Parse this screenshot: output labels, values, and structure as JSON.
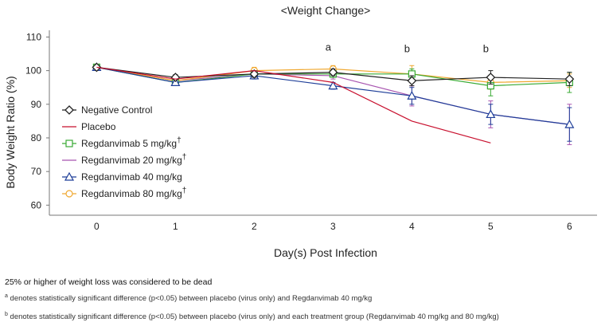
{
  "chart_data": {
    "type": "line",
    "title": "<Weight Change>",
    "xlabel": "Day(s) Post Infection",
    "ylabel": "Body Weight Ratio (%)",
    "x": [
      0,
      1,
      2,
      3,
      4,
      5,
      6
    ],
    "xlim": [
      -0.6,
      6.35
    ],
    "ylim": [
      57,
      112
    ],
    "yticks": [
      60,
      70,
      80,
      90,
      100,
      110
    ],
    "grid": false,
    "legend_position": "left",
    "series": [
      {
        "name": "Negative Control",
        "color": "#222222",
        "marker": "diamond",
        "values": [
          101,
          98,
          99,
          99.5,
          97,
          98,
          97.5
        ],
        "errors": [
          0.5,
          0.8,
          1,
          1,
          1.5,
          2,
          2
        ]
      },
      {
        "name": "Placebo",
        "color": "#c8102e",
        "marker": "none",
        "values": [
          101,
          97.5,
          100,
          96.5,
          85,
          78.5,
          null
        ],
        "errors": [
          0,
          0,
          0,
          0,
          0,
          0,
          null
        ]
      },
      {
        "name": "Regdanvimab 5 mg/kg",
        "dagger": "†",
        "color": "#3aaa35",
        "marker": "square",
        "values": [
          101,
          96.5,
          99,
          99,
          99,
          95.5,
          96.5
        ],
        "errors": [
          0.5,
          0.8,
          1,
          1,
          1.5,
          3,
          3
        ]
      },
      {
        "name": "Regdanvimab 20 mg/kg",
        "dagger": "†",
        "color": "#a855b0",
        "marker": "none",
        "values": [
          101,
          97,
          99,
          98.5,
          92.5,
          87,
          84
        ],
        "errors": [
          0,
          0,
          0,
          1,
          3,
          4,
          6
        ]
      },
      {
        "name": "Regdanvimab 40 mg/kg",
        "color": "#1f3f99",
        "marker": "triangle",
        "values": [
          101,
          96.5,
          98.5,
          95.5,
          92.5,
          87,
          84
        ],
        "errors": [
          0.5,
          0.8,
          1,
          1,
          2.5,
          3,
          5
        ]
      },
      {
        "name": "Regdanvimab 80 mg/kg",
        "dagger": "†",
        "color": "#f0a830",
        "marker": "circle",
        "values": [
          101,
          97,
          100,
          100.5,
          99,
          96.5,
          97
        ],
        "errors": [
          0.5,
          0.8,
          1,
          1,
          2.5,
          2,
          2
        ]
      }
    ],
    "annotations": [
      {
        "text": "a",
        "x": 3,
        "y": 106
      },
      {
        "text": "b",
        "x": 4,
        "y": 105.5
      },
      {
        "text": "b",
        "x": 5,
        "y": 105.5
      }
    ]
  },
  "footnotes": {
    "main": "25% or higher of weight loss was considered to be dead",
    "a_mark": "a",
    "a_text": "denotes statistically significant difference (p<0.05) between placebo (virus only) and Regdanvimab 40 mg/kg",
    "b_mark": "b",
    "b_text": "denotes statistically significant difference (p<0.05) between placebo (virus only) and each treatment group (Regdanvimab 40 mg/kg and 80 mg/kg)"
  }
}
